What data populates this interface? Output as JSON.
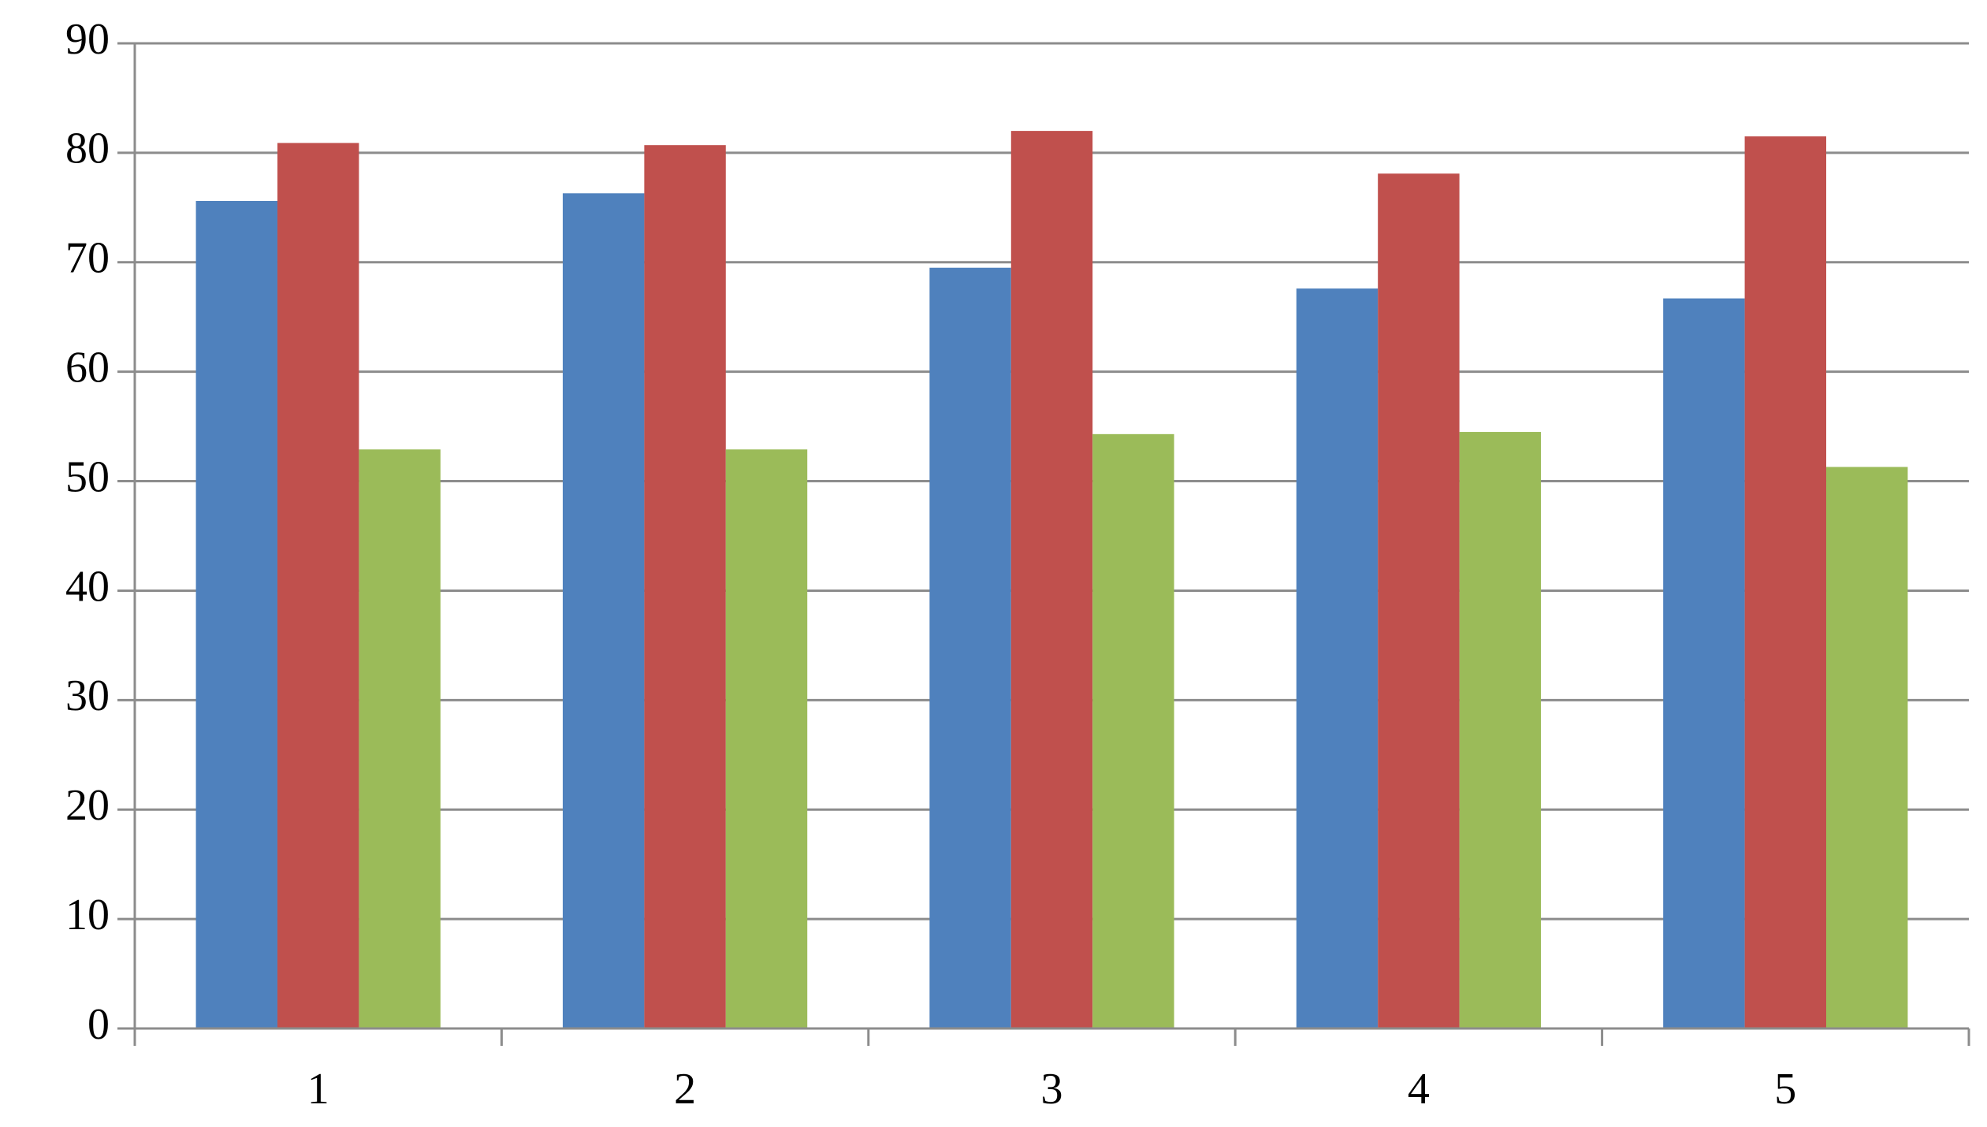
{
  "chart_data": {
    "type": "bar",
    "categories": [
      "1",
      "2",
      "3",
      "4",
      "5"
    ],
    "series": [
      {
        "color": "#4f81bd",
        "values": [
          75.6,
          76.3,
          69.5,
          67.6,
          66.7
        ]
      },
      {
        "color": "#c0504d",
        "values": [
          80.9,
          80.7,
          82.0,
          78.1,
          81.5
        ]
      },
      {
        "color": "#9bbb59",
        "values": [
          52.9,
          52.9,
          54.3,
          54.5,
          51.3
        ]
      }
    ],
    "ylim": [
      0,
      90
    ],
    "yticks": [
      0,
      10,
      20,
      30,
      40,
      50,
      60,
      70,
      80,
      90
    ],
    "grid": true
  }
}
